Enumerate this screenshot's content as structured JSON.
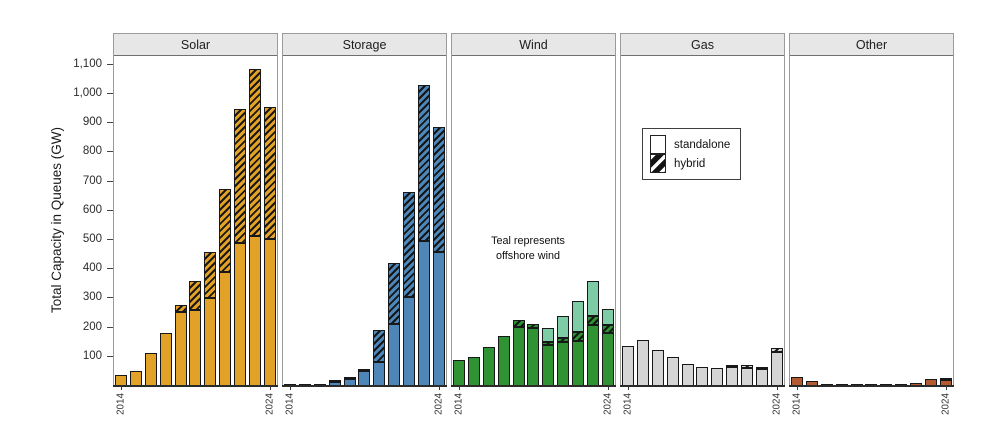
{
  "figure": {
    "y_axis_title": "Total Capacity in Queues (GW)",
    "annotation": {
      "line1": "Teal represents",
      "line2": "offshore wind"
    },
    "legend": {
      "items": [
        {
          "label": "standalone",
          "pattern": "solid"
        },
        {
          "label": "hybrid",
          "pattern": "hatched"
        }
      ]
    }
  },
  "chart_data": {
    "type": "bar",
    "stacked": true,
    "unit": "GW",
    "title": "",
    "xlabel": "",
    "ylabel": "Total Capacity in Queues (GW)",
    "ylim": [
      0,
      1130
    ],
    "grid": false,
    "legend_position": "inside-gas-panel",
    "y_ticks": [
      100,
      200,
      300,
      400,
      500,
      600,
      700,
      800,
      900,
      1000,
      1100
    ],
    "y_tick_labels": [
      "100",
      "200",
      "300",
      "400",
      "500",
      "600",
      "700",
      "800",
      "900",
      "1,000",
      "1,100"
    ],
    "x": [
      2014,
      2015,
      2016,
      2017,
      2018,
      2019,
      2020,
      2021,
      2022,
      2023,
      2024
    ],
    "x_shown_ticks": [
      "2014",
      "2024"
    ],
    "annotation": "Teal represents offshore wind",
    "colors": {
      "solar": "#E2A227",
      "storage": "#4E86B8",
      "wind_onshore": "#2F9233",
      "wind_offshore": "#7DCCA6",
      "gas": "#D5D5D5",
      "other": "#B45A31",
      "bar_outline": "#16181a",
      "header_bg": "#e7e7e7"
    },
    "panels": [
      {
        "label": "Solar",
        "fill": "#E2A227",
        "series": [
          {
            "name": "standalone",
            "hatched": false,
            "values": [
              38,
              51,
              113,
              182,
              253,
              259,
              301,
              390,
              490,
              515,
              505
            ]
          },
          {
            "name": "hybrid",
            "hatched": true,
            "values": [
              0,
              0,
              0,
              0,
              25,
              101,
              159,
              285,
              459,
              570,
              450
            ]
          }
        ]
      },
      {
        "label": "Storage",
        "fill": "#4E86B8",
        "series": [
          {
            "name": "standalone",
            "hatched": false,
            "values": [
              2,
              4,
              8,
              13,
              24,
              52,
              83,
              212,
              305,
              495,
              460
            ]
          },
          {
            "name": "hybrid",
            "hatched": true,
            "values": [
              0,
              0,
              0,
              2,
              4,
              8,
              110,
              209,
              360,
              537,
              426
            ]
          }
        ]
      },
      {
        "label": "Wind",
        "fill": "#2F9233",
        "series": [
          {
            "name": "standalone",
            "hatched": false,
            "values": [
              89,
              100,
              134,
              172,
              203,
              200,
              140,
              150,
              153,
              210,
              180
            ]
          },
          {
            "name": "hybrid",
            "hatched": true,
            "values": [
              0,
              0,
              0,
              0,
              22,
              13,
              10,
              13,
              33,
              30,
              28
            ]
          },
          {
            "name": "offshore",
            "hatched": false,
            "fill": "#7DCCA6",
            "values": [
              0,
              0,
              0,
              0,
              0,
              0,
              47,
              76,
              104,
              118,
              57
            ]
          }
        ]
      },
      {
        "label": "Gas",
        "fill": "#D5D5D5",
        "series": [
          {
            "name": "standalone",
            "hatched": false,
            "values": [
              137,
              157,
              123,
              100,
              77,
              66,
              60,
              64,
              63,
              58,
              118
            ]
          },
          {
            "name": "hybrid",
            "hatched": true,
            "values": [
              0,
              0,
              0,
              0,
              0,
              0,
              0,
              2,
              8,
              8,
              12
            ]
          }
        ]
      },
      {
        "label": "Other",
        "fill": "#B45A31",
        "series": [
          {
            "name": "standalone",
            "hatched": false,
            "values": [
              30,
              17,
              8,
              4,
              3,
              4,
              3,
              7,
              12,
              24,
              20
            ]
          },
          {
            "name": "hybrid",
            "hatched": true,
            "values": [
              0,
              0,
              0,
              0,
              0,
              0,
              0,
              0,
              0,
              0,
              3
            ]
          }
        ]
      }
    ]
  }
}
